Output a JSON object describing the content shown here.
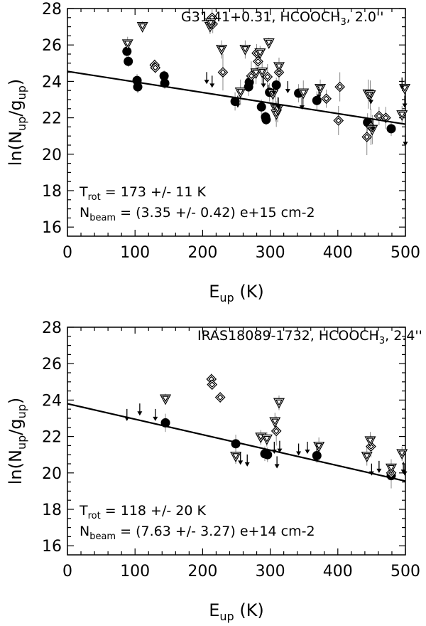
{
  "chart_data": [
    {
      "type": "scatter",
      "title": "G31.41+0.31, HCOOCH",
      "title_subscript": "3",
      "title_suffix": ", 2.0''",
      "xlabel_main": "E",
      "xlabel_sub": "up",
      "xlabel_unit": " (K)",
      "ylabel_prefix": "ln(N",
      "ylabel_sub1": "up",
      "ylabel_mid": "/g",
      "ylabel_sub2": "up",
      "ylabel_suffix": ")",
      "xlim": [
        0,
        500
      ],
      "ylim": [
        15.5,
        28
      ],
      "xticks": [
        "0",
        "100",
        "200",
        "300",
        "400",
        "500"
      ],
      "yticks": [
        "16",
        "18",
        "20",
        "22",
        "24",
        "26",
        "28"
      ],
      "trot_label": "T",
      "trot_sub": "rot",
      "trot_value": " = 173 +/- 11 K",
      "nbeam_label": "N",
      "nbeam_sub": "beam",
      "nbeam_value": " = (3.35 +/- 0.42) e+15 cm-2",
      "fit": {
        "x": [
          0,
          500
        ],
        "y": [
          24.55,
          21.65
        ]
      },
      "series": [
        {
          "name": "filled-circles",
          "marker": "circle",
          "points": [
            [
              88,
              25.65,
              0.3
            ],
            [
              90,
              25.1,
              0.3
            ],
            [
              103,
              24.05,
              0.35
            ],
            [
              104,
              23.7,
              0.35
            ],
            [
              143,
              24.3,
              0.3
            ],
            [
              144,
              23.9,
              0.3
            ],
            [
              248,
              22.9,
              0.5
            ],
            [
              268,
              23.7,
              0.5
            ],
            [
              269,
              23.95,
              0.5
            ],
            [
              287,
              22.6,
              0.4
            ],
            [
              293,
              22.05,
              0.3
            ],
            [
              294,
              21.9,
              0.3
            ],
            [
              299,
              23.4,
              0.5
            ],
            [
              309,
              23.8,
              0.4
            ],
            [
              342,
              23.35,
              0.5
            ],
            [
              369,
              22.95,
              0.5
            ],
            [
              444,
              21.75,
              0.5
            ],
            [
              479,
              21.4,
              0.4
            ]
          ]
        },
        {
          "name": "open-diamonds",
          "marker": "diamond",
          "points": [
            [
              129,
              24.9,
              0.3
            ],
            [
              130,
              24.75,
              0.3
            ],
            [
              214,
              27.5,
              0.5
            ],
            [
              215,
              27.15,
              0.5
            ],
            [
              230,
              24.5,
              1.0
            ],
            [
              272,
              24.3,
              0.8
            ],
            [
              280,
              25.55,
              0.5
            ],
            [
              282,
              25.1,
              0.5
            ],
            [
              296,
              24.25,
              0.7
            ],
            [
              313,
              24.5,
              0.8
            ],
            [
              383,
              23.05,
              0.5
            ],
            [
              401,
              21.85,
              0.8
            ],
            [
              403,
              23.7,
              0.8
            ],
            [
              443,
              20.95,
              1.0
            ],
            [
              449,
              21.5,
              1.0
            ],
            [
              461,
              22.1,
              0.5
            ],
            [
              471,
              22.0,
              0.6
            ]
          ]
        },
        {
          "name": "open-triangles",
          "marker": "triangle",
          "points": [
            [
              89,
              26.05,
              0.4
            ],
            [
              111,
              27.0,
              0.3
            ],
            [
              211,
              27.0,
              0.4
            ],
            [
              212,
              27.2,
              0.4
            ],
            [
              228,
              25.75,
              0.5
            ],
            [
              256,
              23.4,
              0.7
            ],
            [
              263,
              25.75,
              0.5
            ],
            [
              279,
              24.45,
              0.6
            ],
            [
              285,
              25.55,
              0.4
            ],
            [
              288,
              24.5,
              0.6
            ],
            [
              298,
              26.1,
              0.3
            ],
            [
              304,
              23.3,
              0.6
            ],
            [
              308,
              22.5,
              0.7
            ],
            [
              309,
              22.2,
              0.7
            ],
            [
              311,
              22.45,
              0.7
            ],
            [
              313,
              24.8,
              0.5
            ],
            [
              349,
              23.35,
              0.7
            ],
            [
              374,
              23.6,
              0.5
            ],
            [
              445,
              23.3,
              0.8
            ],
            [
              448,
              23.25,
              0.8
            ],
            [
              451,
              21.35,
              0.8
            ],
            [
              495,
              22.15,
              0.5
            ],
            [
              499,
              23.6,
              0.5
            ]
          ]
        },
        {
          "name": "upper-limits",
          "marker": "down-arrow",
          "points": [
            [
              206,
              24.2
            ],
            [
              214,
              24.0
            ],
            [
              252,
              22.9
            ],
            [
              290,
              24.0
            ],
            [
              297,
              23.5
            ],
            [
              305,
              23.6
            ],
            [
              312,
              22.8
            ],
            [
              326,
              23.7
            ],
            [
              347,
              22.8
            ],
            [
              372,
              23.4
            ],
            [
              449,
              23.1
            ],
            [
              452,
              21.6
            ],
            [
              495,
              23.9
            ],
            [
              499,
              22.9
            ],
            [
              500,
              20.8
            ]
          ]
        }
      ]
    },
    {
      "type": "scatter",
      "title": "IRAS18089-1732, HCOOCH",
      "title_subscript": "3",
      "title_suffix": ", 2.4''",
      "xlabel_main": "E",
      "xlabel_sub": "up",
      "xlabel_unit": " (K)",
      "ylabel_prefix": "ln(N",
      "ylabel_sub1": "up",
      "ylabel_mid": "/g",
      "ylabel_sub2": "up",
      "ylabel_suffix": ")",
      "xlim": [
        0,
        500
      ],
      "ylim": [
        15.5,
        28
      ],
      "xticks": [
        "0",
        "100",
        "200",
        "300",
        "400",
        "500"
      ],
      "yticks": [
        "16",
        "18",
        "20",
        "22",
        "24",
        "26",
        "28"
      ],
      "trot_label": "T",
      "trot_sub": "rot",
      "trot_value": " = 118 +/- 20 K",
      "nbeam_label": "N",
      "nbeam_sub": "beam",
      "nbeam_value": " = (7.63 +/- 3.27) e+14 cm-2",
      "fit": {
        "x": [
          0,
          500
        ],
        "y": [
          23.8,
          19.55
        ]
      },
      "series": [
        {
          "name": "filled-circles",
          "marker": "circle",
          "points": [
            [
              145,
              22.75,
              0.5
            ],
            [
              249,
              21.6,
              0.5
            ],
            [
              292,
              21.05,
              0.4
            ],
            [
              296,
              21.0,
              0.4
            ],
            [
              369,
              20.95,
              0.4
            ],
            [
              479,
              19.85,
              0.7
            ]
          ]
        },
        {
          "name": "open-diamonds",
          "marker": "diamond",
          "points": [
            [
              213,
              25.15,
              0.3
            ],
            [
              214,
              24.85,
              0.3
            ],
            [
              226,
              24.15,
              0.3
            ],
            [
              309,
              22.3,
              0.8
            ],
            [
              449,
              21.45,
              0.6
            ],
            [
              479,
              20.0,
              0.7
            ]
          ]
        },
        {
          "name": "open-triangles",
          "marker": "triangle",
          "points": [
            [
              145,
              24.05,
              0.3
            ],
            [
              249,
              20.9,
              0.4
            ],
            [
              286,
              21.95,
              0.4
            ],
            [
              295,
              21.85,
              0.4
            ],
            [
              307,
              22.8,
              0.5
            ],
            [
              313,
              23.85,
              0.4
            ],
            [
              372,
              21.45,
              0.5
            ],
            [
              443,
              20.9,
              0.5
            ],
            [
              448,
              21.75,
              0.5
            ],
            [
              479,
              20.25,
              0.5
            ],
            [
              495,
              21.05,
              0.4
            ]
          ]
        },
        {
          "name": "upper-limits",
          "marker": "down-arrow",
          "points": [
            [
              88,
              23.2
            ],
            [
              107,
              23.5
            ],
            [
              130,
              23.2
            ],
            [
              256,
              20.8
            ],
            [
              266,
              20.7
            ],
            [
              306,
              21.4
            ],
            [
              310,
              20.6
            ],
            [
              314,
              21.45
            ],
            [
              342,
              21.3
            ],
            [
              355,
              21.4
            ],
            [
              369,
              21.3
            ],
            [
              450,
              20.2
            ],
            [
              461,
              20.35
            ],
            [
              497,
              20.3
            ],
            [
              499,
              20.2
            ]
          ]
        }
      ]
    }
  ]
}
